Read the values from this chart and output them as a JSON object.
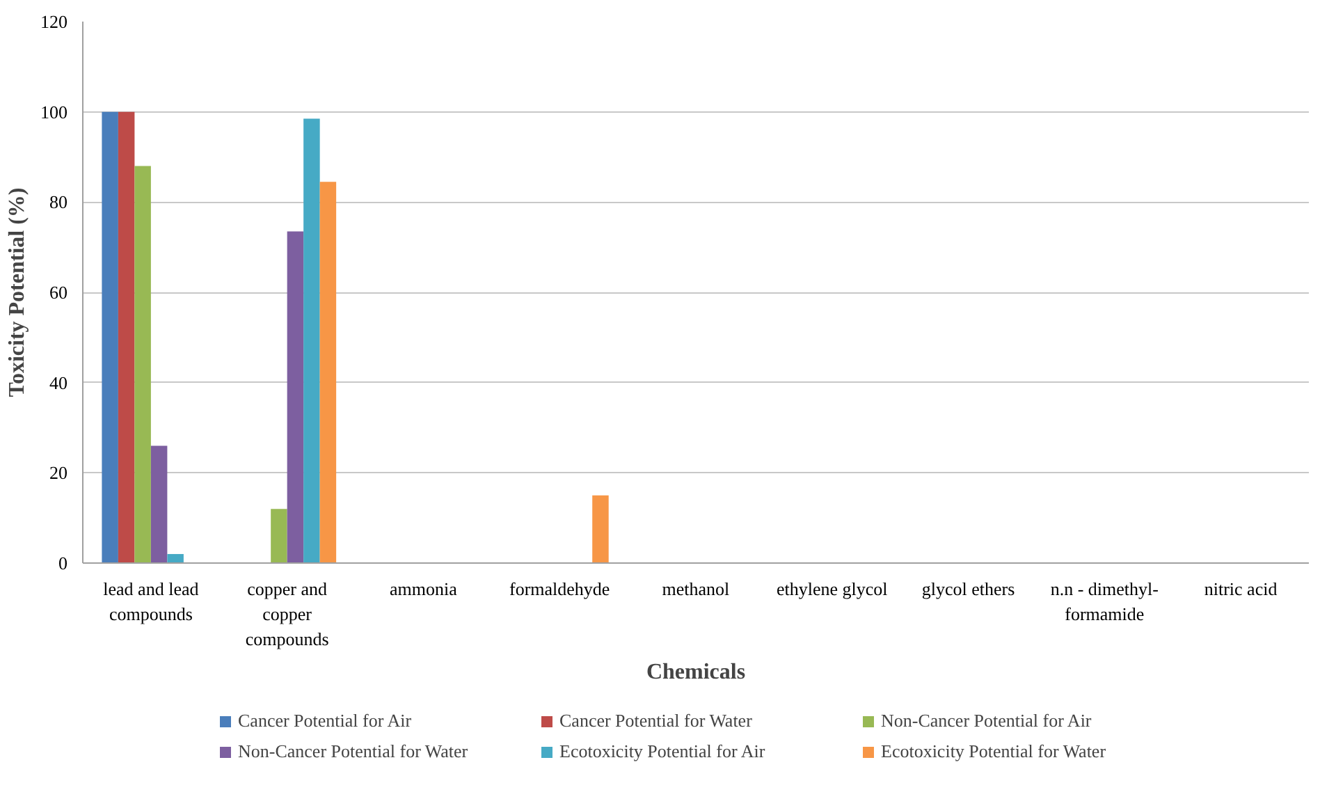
{
  "chart_data": {
    "type": "bar",
    "xlabel": "Chemicals",
    "ylabel": "Toxicity Potential (%)",
    "categories": [
      "lead and lead compounds",
      "copper and copper compounds",
      "ammonia",
      "formaldehyde",
      "methanol",
      "ethylene glycol",
      "glycol ethers",
      "n.n - dimethyl-formamide",
      "nitric acid"
    ],
    "series": [
      {
        "name": "Cancer Potential for Air",
        "color": "#4a7ebb",
        "values": [
          100,
          0,
          0,
          0,
          0,
          0,
          0,
          0,
          0
        ]
      },
      {
        "name": "Cancer Potential for Water",
        "color": "#be4b48",
        "values": [
          100,
          0,
          0,
          0,
          0,
          0,
          0,
          0,
          0
        ]
      },
      {
        "name": "Non-Cancer Potential for Air",
        "color": "#98b954",
        "values": [
          88,
          12,
          0,
          0,
          0,
          0,
          0,
          0,
          0
        ]
      },
      {
        "name": "Non-Cancer Potential for Water",
        "color": "#7d5fa0",
        "values": [
          26,
          73.5,
          0,
          0,
          0,
          0,
          0,
          0,
          0
        ]
      },
      {
        "name": "Ecotoxicity Potential for Air",
        "color": "#46aac5",
        "values": [
          2,
          98.5,
          0,
          0,
          0,
          0,
          0,
          0,
          0
        ]
      },
      {
        "name": "Ecotoxicity Potential for Water",
        "color": "#f79646",
        "values": [
          0,
          84.5,
          0,
          15,
          0,
          0,
          0,
          0,
          0
        ]
      }
    ],
    "ylim": [
      0,
      120
    ],
    "yticks": [
      0,
      20,
      40,
      60,
      80,
      100,
      120
    ],
    "grid": "y",
    "legend": "bottom"
  }
}
